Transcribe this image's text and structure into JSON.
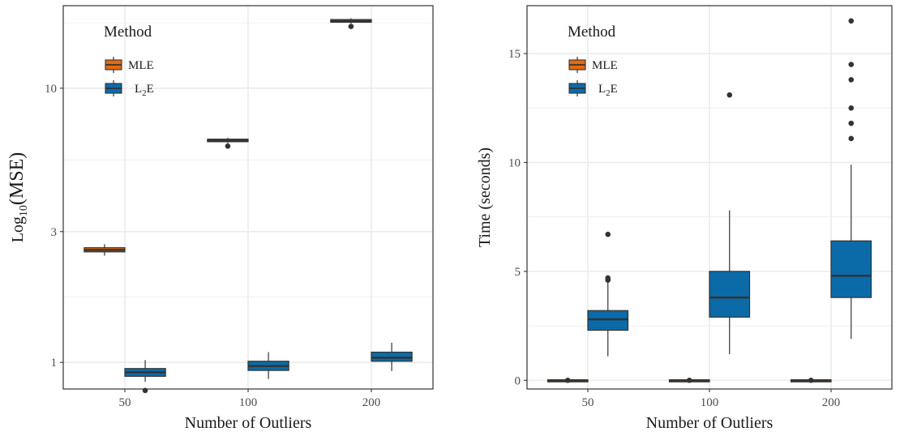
{
  "colors": {
    "MLE": "#E8690C",
    "L2E": "#0B6BA8",
    "box_stroke": "#333333",
    "grid": "#ebebeb",
    "panel_border": "#333333"
  },
  "chart_data": [
    {
      "type": "box",
      "xlabel": "Number of Outliers",
      "ylabel": {
        "prefix": "Log",
        "sub": "10",
        "rest": "(MSE)"
      },
      "y_scale": "log10",
      "ylim": [
        0.8,
        20
      ],
      "y_ticks": [
        1,
        3,
        10
      ],
      "y_tick_labels": [
        "1",
        "3",
        "10"
      ],
      "categories": [
        "50",
        "100",
        "200"
      ],
      "legend": {
        "title": "Method",
        "position": "top-left",
        "entries": [
          {
            "label": "MLE",
            "sub": "",
            "after": ""
          },
          {
            "label": "L",
            "sub": "2",
            "after": "E"
          }
        ]
      },
      "series": [
        {
          "name": "MLE",
          "boxes": [
            {
              "min": 2.45,
              "q1": 2.53,
              "median": 2.57,
              "q3": 2.62,
              "max": 2.7,
              "outliers": []
            },
            {
              "min": 6.3,
              "q1": 6.38,
              "median": 6.45,
              "q3": 6.52,
              "max": 6.6,
              "outliers": [
                6.15
              ]
            },
            {
              "min": 17.2,
              "q1": 17.4,
              "median": 17.6,
              "q3": 17.8,
              "max": 18.0,
              "outliers": [
                16.8
              ]
            }
          ]
        },
        {
          "name": "L2E",
          "boxes": [
            {
              "min": 0.85,
              "q1": 0.89,
              "median": 0.92,
              "q3": 0.95,
              "max": 1.02,
              "outliers": [
                0.79
              ]
            },
            {
              "min": 0.87,
              "q1": 0.935,
              "median": 0.97,
              "q3": 1.01,
              "max": 1.09,
              "outliers": []
            },
            {
              "min": 0.93,
              "q1": 1.01,
              "median": 1.04,
              "q3": 1.09,
              "max": 1.18,
              "outliers": []
            }
          ]
        }
      ]
    },
    {
      "type": "box",
      "xlabel": "Number of Outliers",
      "ylabel": "Time (seconds)",
      "ylim": [
        -0.4,
        17.2
      ],
      "y_ticks": [
        0,
        5,
        10,
        15
      ],
      "y_tick_labels": [
        "0",
        "5",
        "10",
        "15"
      ],
      "categories": [
        "50",
        "100",
        "200"
      ],
      "legend": {
        "title": "Method",
        "position": "top-left",
        "entries": [
          {
            "label": "MLE",
            "sub": "",
            "after": ""
          },
          {
            "label": "L",
            "sub": "2",
            "after": "E"
          }
        ]
      },
      "series": [
        {
          "name": "MLE",
          "boxes": [
            {
              "min": 0.0,
              "q1": 0.0,
              "median": 0.0,
              "q3": 0.02,
              "max": 0.02,
              "outliers": [
                0.0
              ]
            },
            {
              "min": 0.0,
              "q1": 0.0,
              "median": 0.0,
              "q3": 0.02,
              "max": 0.02,
              "outliers": [
                0.0
              ]
            },
            {
              "min": 0.0,
              "q1": 0.0,
              "median": 0.0,
              "q3": 0.02,
              "max": 0.02,
              "outliers": [
                0.0
              ]
            }
          ]
        },
        {
          "name": "L2E",
          "boxes": [
            {
              "min": 1.1,
              "q1": 2.3,
              "median": 2.8,
              "q3": 3.2,
              "max": 4.5,
              "outliers": [
                4.6,
                4.7,
                6.7
              ]
            },
            {
              "min": 1.2,
              "q1": 2.9,
              "median": 3.8,
              "q3": 5.0,
              "max": 7.8,
              "outliers": [
                13.1
              ]
            },
            {
              "min": 1.9,
              "q1": 3.8,
              "median": 4.8,
              "q3": 6.4,
              "max": 9.9,
              "outliers": [
                11.1,
                11.8,
                12.5,
                13.8,
                14.5,
                16.5
              ]
            }
          ]
        }
      ]
    }
  ]
}
